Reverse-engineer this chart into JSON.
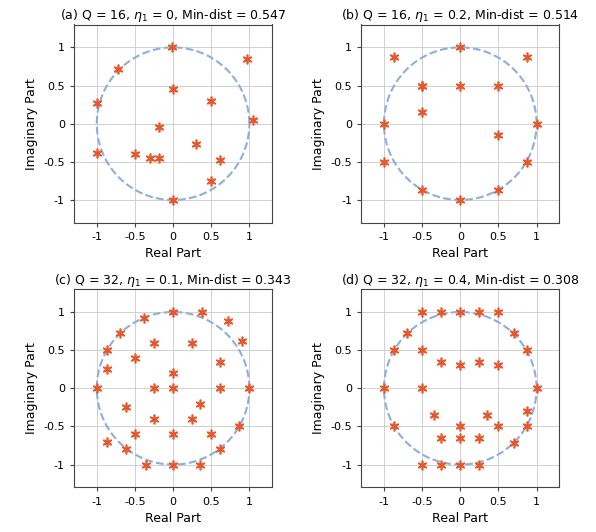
{
  "titles": [
    "(a) Q = 16, $\\eta_1$ = 0, Min-dist = 0.547",
    "(b) Q = 16, $\\eta_1$ = 0.2, Min-dist = 0.514",
    "(c) Q = 32, $\\eta_1$ = 0.1, Min-dist = 0.343",
    "(d) Q = 32, $\\eta_1$ = 0.4, Min-dist = 0.308"
  ],
  "points_a_real": [
    -1.0,
    -0.72,
    -0.5,
    -0.18,
    0.0,
    0.5,
    0.97,
    1.05,
    0.62,
    0.5,
    0.3,
    0.0,
    -0.18,
    -0.3,
    -1.0,
    -0.02
  ],
  "points_a_imag": [
    0.27,
    0.72,
    -0.4,
    -0.05,
    0.45,
    0.3,
    0.85,
    0.05,
    -0.48,
    -0.75,
    -0.27,
    -1.0,
    -0.45,
    -0.45,
    -0.38,
    1.0
  ],
  "points_b_real": [
    -1.0,
    -0.87,
    -0.5,
    0.0,
    0.87,
    1.0,
    0.87,
    0.5,
    0.0,
    -0.5,
    -1.0,
    -0.5,
    -0.5,
    0.0,
    0.5,
    0.5
  ],
  "points_b_imag": [
    0.0,
    0.87,
    0.5,
    1.0,
    0.87,
    0.0,
    -0.5,
    -0.87,
    -1.0,
    -0.87,
    -0.5,
    0.15,
    0.5,
    0.5,
    0.5,
    -0.15
  ],
  "points_c_real": [
    -1.0,
    -0.87,
    -0.7,
    -0.38,
    0.0,
    0.38,
    0.72,
    0.9,
    1.0,
    0.87,
    0.62,
    0.35,
    0.0,
    -0.35,
    -0.62,
    -0.87,
    -0.5,
    -0.25,
    0.0,
    0.25,
    0.62,
    0.5,
    0.25,
    -0.25,
    -0.62,
    -0.5,
    0.0,
    0.35,
    0.62,
    0.0,
    -0.87,
    -0.25
  ],
  "points_c_imag": [
    0.0,
    0.5,
    0.72,
    0.92,
    1.0,
    1.0,
    0.88,
    0.62,
    0.0,
    -0.5,
    -0.8,
    -1.0,
    -1.0,
    -1.0,
    -0.8,
    -0.7,
    0.4,
    0.6,
    0.0,
    0.6,
    0.35,
    -0.6,
    -0.4,
    -0.4,
    -0.25,
    -0.6,
    -0.6,
    -0.2,
    0.0,
    0.2,
    0.25,
    0.0
  ],
  "points_d_real": [
    -1.0,
    -0.87,
    -0.7,
    -0.5,
    -0.25,
    0.0,
    0.25,
    0.5,
    0.7,
    0.87,
    1.0,
    0.87,
    0.7,
    0.35,
    0.0,
    -0.35,
    -0.5,
    -0.87,
    -0.5,
    -0.25,
    0.0,
    0.25,
    0.5,
    0.87,
    0.5,
    0.25,
    0.0,
    -0.25,
    -0.5,
    -0.25,
    0.0,
    0.25
  ],
  "points_d_imag": [
    0.0,
    0.5,
    0.72,
    1.0,
    1.0,
    1.0,
    1.0,
    1.0,
    0.72,
    0.5,
    0.0,
    -0.5,
    -0.72,
    -0.35,
    -0.5,
    -0.35,
    0.5,
    -0.5,
    -1.0,
    -1.0,
    -1.0,
    -1.0,
    -0.5,
    -0.3,
    0.3,
    0.35,
    0.3,
    0.35,
    0.0,
    -0.65,
    -0.65,
    -0.65
  ],
  "circle_color": "#8daede",
  "point_color": "#e8572a",
  "grid_color": "#d0d0d0",
  "xlabel": "Real Part",
  "ylabel": "Imaginary Part",
  "xlim": [
    -1.3,
    1.3
  ],
  "ylim": [
    -1.3,
    1.3
  ],
  "xticks": [
    -1,
    -0.5,
    0,
    0.5,
    1
  ],
  "yticks": [
    -1,
    -0.5,
    0,
    0.5,
    1
  ]
}
